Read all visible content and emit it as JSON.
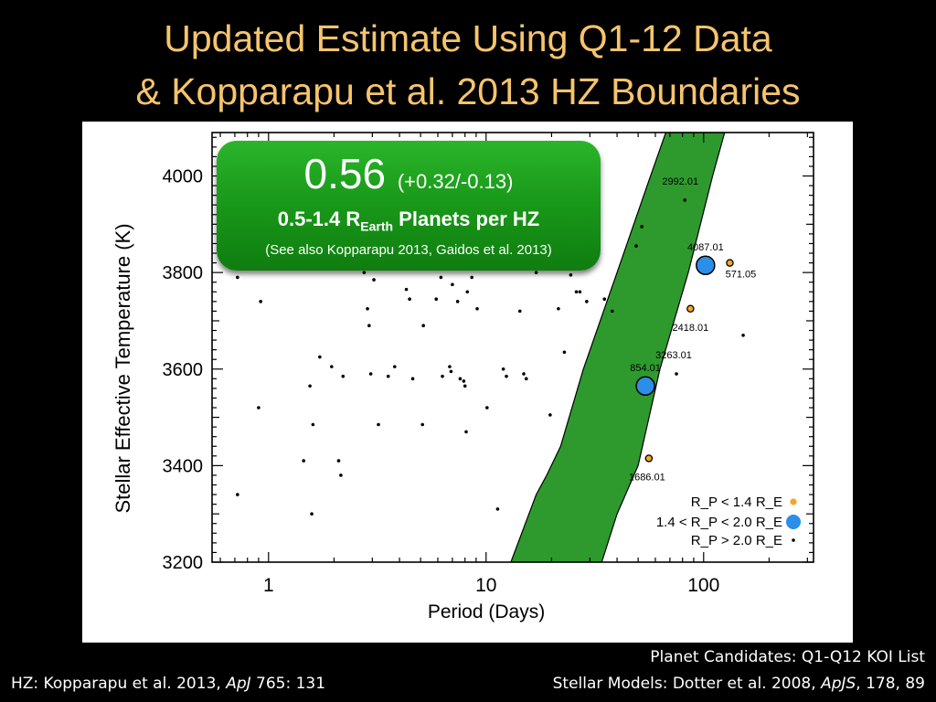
{
  "title": {
    "line1": "Updated Estimate Using Q1-12 Data",
    "line2": "& Kopparapu et al. 2013 HZ Boundaries"
  },
  "callout": {
    "value": "0.56",
    "interval": "(+0.32/-0.13)",
    "label_prefix": "0.5-1.4 R",
    "label_sub": "Earth",
    "label_suffix": " Planets per HZ",
    "note": "(See also Kopparapu 2013, Gaidos et al. 2013)"
  },
  "footer": {
    "hz_ref_prefix": "HZ: Kopparapu et al. 2013, ",
    "hz_ref_journal": "ApJ",
    "hz_ref_suffix": " 765: 131",
    "candidates": "Planet Candidates: Q1-Q12 KOI List",
    "models_prefix": "Stellar Models: Dotter et al. 2008, ",
    "models_journal": "ApJS",
    "models_suffix": ", 178, 89"
  },
  "colors": {
    "hz_fill": "#2e9a2e",
    "small_planet": "#f5a623",
    "mid_planet": "#2b8ee8",
    "large_planet": "#000000",
    "title": "#f6c46d"
  },
  "chart_data": {
    "type": "scatter",
    "xlabel": "Period (Days)",
    "ylabel": "Stellar Effective Temperature (K)",
    "x_scale": "log",
    "xlim": [
      0.55,
      320
    ],
    "ylim": [
      3200,
      4090
    ],
    "x_ticks": [
      1,
      10,
      100
    ],
    "y_ticks": [
      3200,
      3400,
      3600,
      3800,
      4000
    ],
    "hz_region": {
      "inner_edge": [
        [
          13,
          3200
        ],
        [
          17,
          3340
        ],
        [
          19,
          3380
        ],
        [
          22,
          3440
        ],
        [
          28,
          3600
        ],
        [
          40,
          3800
        ],
        [
          55,
          3980
        ],
        [
          67,
          4090
        ]
      ],
      "outer_edge": [
        [
          34,
          3200
        ],
        [
          40,
          3300
        ],
        [
          50,
          3400
        ],
        [
          63,
          3600
        ],
        [
          85,
          3800
        ],
        [
          110,
          4000
        ],
        [
          125,
          4090
        ]
      ]
    },
    "legend": [
      {
        "label": "R_P < 1.4 R_E",
        "marker": "small"
      },
      {
        "label": "1.4 < R_P < 2.0 R_E",
        "marker": "mid"
      },
      {
        "label": "R_P > 2.0 R_E",
        "marker": "large"
      }
    ],
    "legend_placement": "bottom-right",
    "series": [
      {
        "name": "R_P < 1.4 R_E",
        "points": [
          {
            "x": 56,
            "y": 3415,
            "label": "1686.01"
          },
          {
            "x": 87,
            "y": 3725,
            "label": "2418.01"
          },
          {
            "x": 132,
            "y": 3820,
            "label": "571.05"
          }
        ]
      },
      {
        "name": "1.4 < R_P < 2.0 R_E",
        "points": [
          {
            "x": 54,
            "y": 3565,
            "label": "854.01"
          },
          {
            "x": 102,
            "y": 3815,
            "label": "4087.01"
          }
        ]
      },
      {
        "name": "R_P > 2.0 R_E",
        "points": [
          {
            "x": 82,
            "y": 3950,
            "label": "2992.01"
          },
          {
            "x": 75,
            "y": 3590,
            "label": "3263.01"
          },
          {
            "x": 0.72,
            "y": 3340
          },
          {
            "x": 0.72,
            "y": 3790
          },
          {
            "x": 0.9,
            "y": 3520
          },
          {
            "x": 0.92,
            "y": 3740
          },
          {
            "x": 1.45,
            "y": 3410
          },
          {
            "x": 1.55,
            "y": 3565
          },
          {
            "x": 1.58,
            "y": 3300
          },
          {
            "x": 1.6,
            "y": 3485
          },
          {
            "x": 1.72,
            "y": 3625
          },
          {
            "x": 1.95,
            "y": 3605
          },
          {
            "x": 2.1,
            "y": 3410
          },
          {
            "x": 2.15,
            "y": 3380
          },
          {
            "x": 2.2,
            "y": 3585
          },
          {
            "x": 2.75,
            "y": 3800
          },
          {
            "x": 2.85,
            "y": 3725
          },
          {
            "x": 2.9,
            "y": 3690
          },
          {
            "x": 2.95,
            "y": 3590
          },
          {
            "x": 3.05,
            "y": 3785
          },
          {
            "x": 3.2,
            "y": 3485
          },
          {
            "x": 3.55,
            "y": 3585
          },
          {
            "x": 3.8,
            "y": 3605
          },
          {
            "x": 4.3,
            "y": 3765
          },
          {
            "x": 4.45,
            "y": 3745
          },
          {
            "x": 4.6,
            "y": 3580
          },
          {
            "x": 5.1,
            "y": 3485
          },
          {
            "x": 5.15,
            "y": 3690
          },
          {
            "x": 5.9,
            "y": 3745
          },
          {
            "x": 6.2,
            "y": 3790
          },
          {
            "x": 6.3,
            "y": 3585
          },
          {
            "x": 6.8,
            "y": 3605
          },
          {
            "x": 6.9,
            "y": 3595
          },
          {
            "x": 7.0,
            "y": 3775
          },
          {
            "x": 7.4,
            "y": 3740
          },
          {
            "x": 7.6,
            "y": 3580
          },
          {
            "x": 7.9,
            "y": 3575
          },
          {
            "x": 8.0,
            "y": 3565
          },
          {
            "x": 8.1,
            "y": 3470
          },
          {
            "x": 8.2,
            "y": 3760
          },
          {
            "x": 8.6,
            "y": 3790
          },
          {
            "x": 9.1,
            "y": 3725
          },
          {
            "x": 10.1,
            "y": 3520
          },
          {
            "x": 11.3,
            "y": 3310
          },
          {
            "x": 12.0,
            "y": 3600
          },
          {
            "x": 12.4,
            "y": 3585
          },
          {
            "x": 14.3,
            "y": 3720
          },
          {
            "x": 14.9,
            "y": 3590
          },
          {
            "x": 15.3,
            "y": 3580
          },
          {
            "x": 17.0,
            "y": 3800
          },
          {
            "x": 19.7,
            "y": 3505
          },
          {
            "x": 21.5,
            "y": 3725
          },
          {
            "x": 22.9,
            "y": 3635
          },
          {
            "x": 24.5,
            "y": 3795
          },
          {
            "x": 26.0,
            "y": 3760
          },
          {
            "x": 27.0,
            "y": 3760
          },
          {
            "x": 29.0,
            "y": 3740
          },
          {
            "x": 35.0,
            "y": 3745
          },
          {
            "x": 38.0,
            "y": 3720
          },
          {
            "x": 49.0,
            "y": 3855
          },
          {
            "x": 52.0,
            "y": 3895
          },
          {
            "x": 152,
            "y": 3670
          }
        ]
      }
    ]
  }
}
